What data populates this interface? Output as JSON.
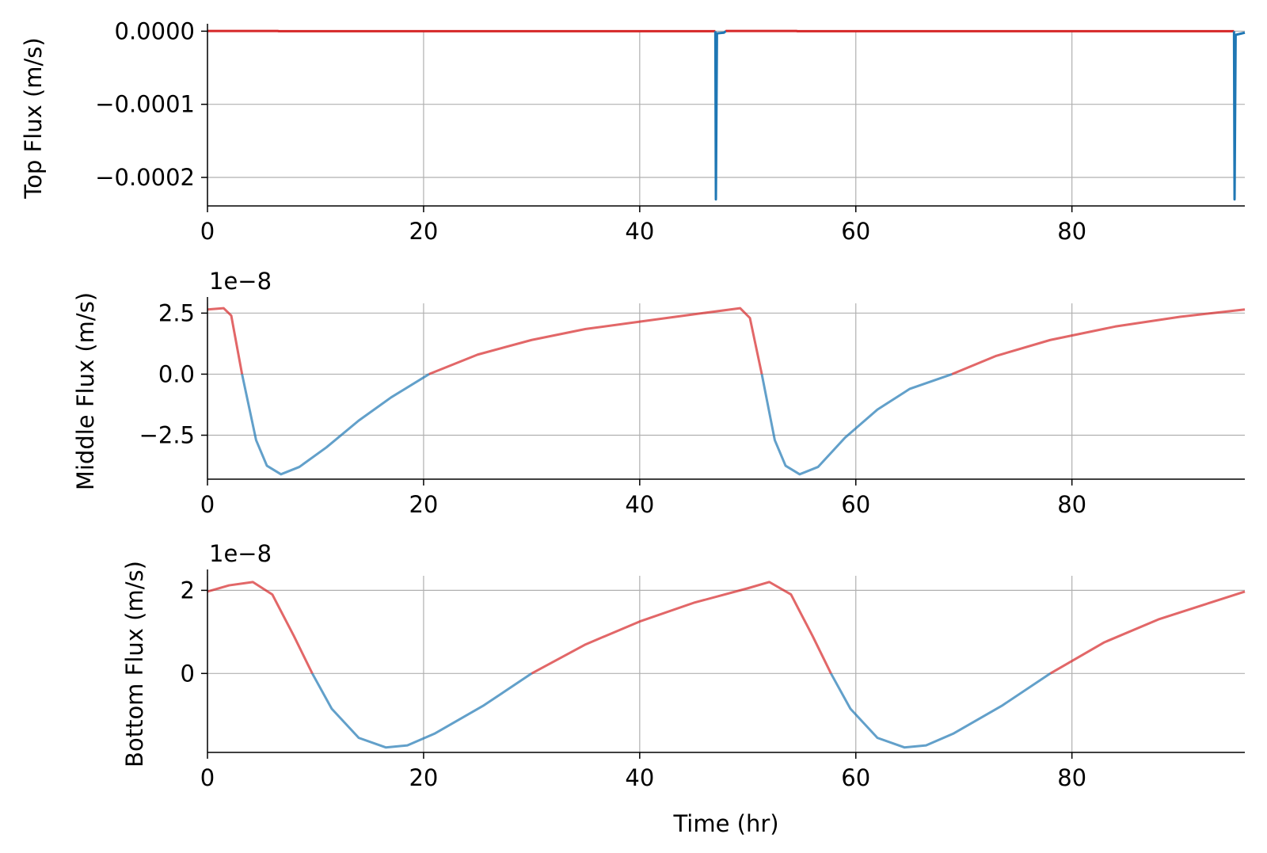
{
  "colors": {
    "positive": "#d62728",
    "negative": "#1f77b4",
    "grid": "#b0b0b0",
    "axis": "#000000"
  },
  "chart_data": [
    {
      "type": "line",
      "ylabel": "Top Flux (m/s)",
      "xlabel": "",
      "offset_text": "",
      "xlim": [
        0,
        96
      ],
      "ylim": [
        -0.000239,
        1.5e-06
      ],
      "xticks": [
        0,
        20,
        40,
        60,
        80
      ],
      "xtick_labels": [
        "0",
        "20",
        "40",
        "60",
        "80"
      ],
      "yticks": [
        0,
        -0.0001,
        -0.0002
      ],
      "ytick_labels": [
        "0.0000",
        "−0.0001",
        "−0.0002"
      ],
      "grid": true,
      "legend": "none",
      "series": [
        {
          "values": [
            [
              0,
              3e-07
            ],
            [
              6.5,
              3e-07
            ],
            [
              6.6,
              0
            ],
            [
              47.0,
              0
            ],
            [
              47.05,
              -0.00023
            ],
            [
              47.15,
              -3e-06
            ],
            [
              47.8,
              -2e-06
            ],
            [
              48.0,
              3e-07
            ],
            [
              54.5,
              3e-07
            ],
            [
              54.6,
              0
            ],
            [
              95.0,
              0
            ],
            [
              95.05,
              -0.00023
            ],
            [
              95.15,
              -5e-06
            ],
            [
              96,
              -2e-06
            ]
          ]
        }
      ]
    },
    {
      "type": "line",
      "ylabel": "Middle Flux (m/s)",
      "xlabel": "",
      "offset_text": "1e−8",
      "xlim": [
        0,
        96
      ],
      "ylim": [
        -4.3,
        2.9
      ],
      "xticks": [
        0,
        20,
        40,
        60,
        80
      ],
      "xtick_labels": [
        "0",
        "20",
        "40",
        "60",
        "80"
      ],
      "yticks": [
        2.5,
        0,
        -2.5
      ],
      "ytick_labels": [
        "2.5",
        "0.0",
        "−2.5"
      ],
      "grid": true,
      "legend": "none",
      "series": [
        {
          "values": [
            [
              0,
              2.65
            ],
            [
              1.5,
              2.7
            ],
            [
              2.2,
              2.4
            ],
            [
              3.2,
              0
            ],
            [
              4.5,
              -2.7
            ],
            [
              5.5,
              -3.75
            ],
            [
              6.8,
              -4.1
            ],
            [
              8.5,
              -3.8
            ],
            [
              11,
              -3.0
            ],
            [
              14,
              -1.9
            ],
            [
              17,
              -0.95
            ],
            [
              20.5,
              0
            ],
            [
              25,
              0.8
            ],
            [
              30,
              1.4
            ],
            [
              35,
              1.85
            ],
            [
              40,
              2.15
            ],
            [
              45,
              2.45
            ],
            [
              49.3,
              2.7
            ],
            [
              50.2,
              2.3
            ],
            [
              51.3,
              0
            ],
            [
              52.5,
              -2.7
            ],
            [
              53.5,
              -3.75
            ],
            [
              54.8,
              -4.1
            ],
            [
              56.5,
              -3.8
            ],
            [
              59,
              -2.6
            ],
            [
              62,
              -1.45
            ],
            [
              65,
              -0.6
            ],
            [
              68.9,
              0
            ],
            [
              73,
              0.75
            ],
            [
              78,
              1.4
            ],
            [
              84,
              1.95
            ],
            [
              90,
              2.35
            ],
            [
              96,
              2.65
            ]
          ]
        }
      ]
    },
    {
      "type": "line",
      "ylabel": "Bottom Flux (m/s)",
      "xlabel": "Time (hr)",
      "offset_text": "1e−8",
      "xlim": [
        0,
        96
      ],
      "ylim": [
        -1.9,
        2.35
      ],
      "xticks": [
        0,
        20,
        40,
        60,
        80
      ],
      "xtick_labels": [
        "0",
        "20",
        "40",
        "60",
        "80"
      ],
      "yticks": [
        2,
        0
      ],
      "ytick_labels": [
        "2",
        "0"
      ],
      "grid": true,
      "legend": "none",
      "series": [
        {
          "values": [
            [
              0,
              1.97
            ],
            [
              2,
              2.12
            ],
            [
              4.2,
              2.2
            ],
            [
              6,
              1.9
            ],
            [
              8,
              0.9
            ],
            [
              9.7,
              0
            ],
            [
              11.5,
              -0.85
            ],
            [
              14,
              -1.55
            ],
            [
              16.5,
              -1.78
            ],
            [
              18.5,
              -1.73
            ],
            [
              21,
              -1.45
            ],
            [
              25.5,
              -0.78
            ],
            [
              30,
              0
            ],
            [
              35,
              0.7
            ],
            [
              40,
              1.25
            ],
            [
              45,
              1.7
            ],
            [
              50,
              2.05
            ],
            [
              52,
              2.2
            ],
            [
              54,
              1.9
            ],
            [
              56,
              0.9
            ],
            [
              57.7,
              0
            ],
            [
              59.5,
              -0.85
            ],
            [
              62,
              -1.55
            ],
            [
              64.5,
              -1.78
            ],
            [
              66.5,
              -1.73
            ],
            [
              69,
              -1.45
            ],
            [
              73.5,
              -0.78
            ],
            [
              78,
              0
            ],
            [
              83,
              0.75
            ],
            [
              88,
              1.3
            ],
            [
              93,
              1.72
            ],
            [
              96,
              1.97
            ]
          ]
        }
      ]
    }
  ]
}
